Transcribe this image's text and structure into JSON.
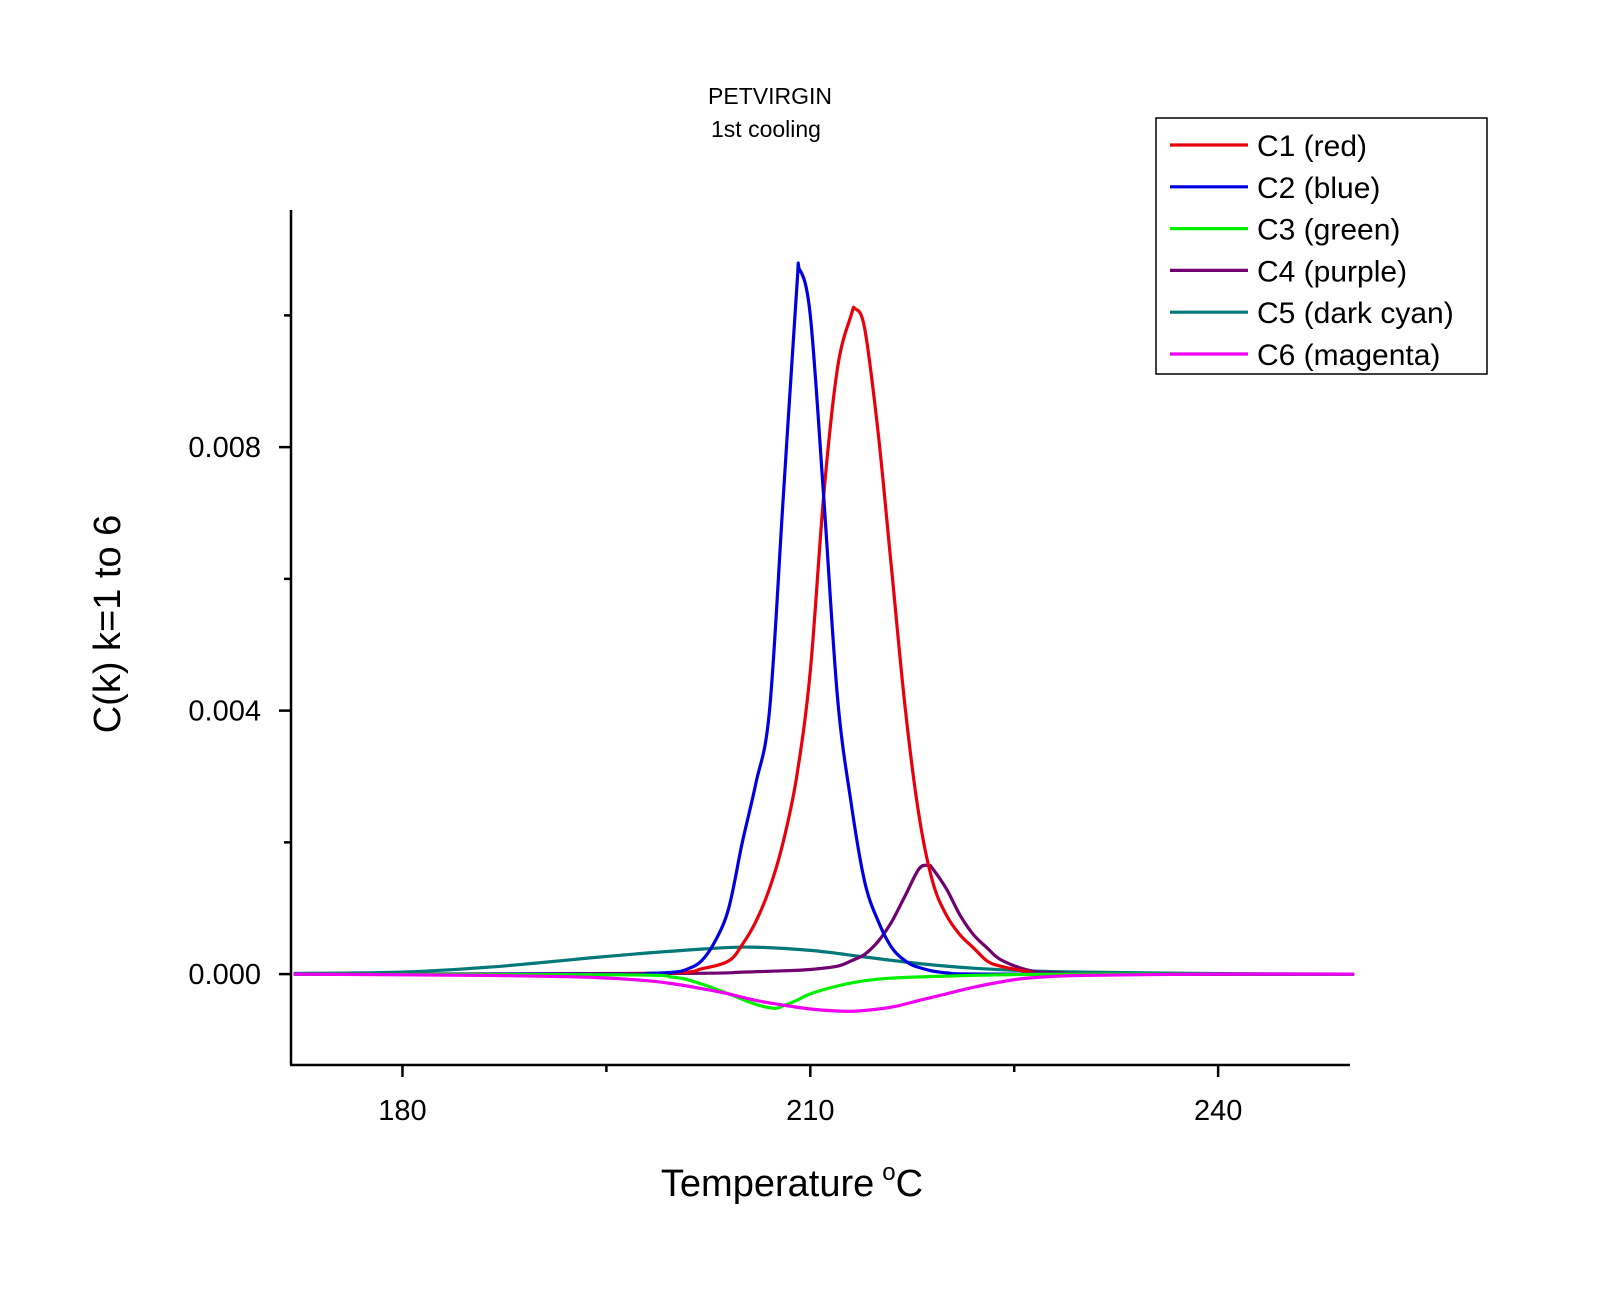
{
  "chart_data": {
    "type": "line",
    "title": [
      "PETVIRGIN",
      "1st  cooling"
    ],
    "xlabel": "Temperature",
    "xlabel_unit": "oC",
    "ylabel": "C(k) k=1 to 6",
    "xlim": [
      171.8,
      249.7
    ],
    "ylim": [
      -0.00138,
      0.0116
    ],
    "xticks": [
      {
        "value": 180,
        "label": "180"
      },
      {
        "value": 210,
        "label": "210"
      },
      {
        "value": 240,
        "label": "240"
      }
    ],
    "xminor": [
      195,
      225
    ],
    "yticks": [
      {
        "value": 0,
        "label": "0.000"
      },
      {
        "value": 0.004,
        "label": "0.004"
      },
      {
        "value": 0.008,
        "label": "0.008"
      }
    ],
    "yminor": [
      0.002,
      0.006,
      0.01
    ],
    "grid": false,
    "legend_position": "top-right",
    "series": [
      {
        "name": "C1 (red)",
        "color": "#e8000b",
        "x": [
          172,
          190,
          200,
          202,
          204,
          205,
          206,
          207,
          208,
          209,
          210,
          211,
          212,
          213,
          213.3,
          214,
          215,
          216,
          217,
          218,
          219,
          220,
          221,
          222,
          223,
          224,
          226,
          228,
          250
        ],
        "y": [
          0,
          0,
          2e-05,
          8e-05,
          0.0002,
          0.00045,
          0.0008,
          0.0013,
          0.002,
          0.003,
          0.0046,
          0.0073,
          0.0092,
          0.01,
          0.0101,
          0.0098,
          0.0082,
          0.0061,
          0.004,
          0.0024,
          0.0014,
          0.0009,
          0.0006,
          0.0004,
          0.0002,
          0.00012,
          4e-05,
          0,
          0
        ]
      },
      {
        "name": "C2 (blue)",
        "color": "#0000e0",
        "x": [
          172,
          196,
          198,
          200,
          201,
          202,
          203,
          204,
          205,
          206,
          207,
          208,
          209,
          209.2,
          210,
          211,
          212,
          213,
          214,
          215,
          216,
          217,
          218,
          220,
          224,
          250
        ],
        "y": [
          0,
          0,
          1e-05,
          3e-05,
          8e-05,
          0.0002,
          0.0005,
          0.001,
          0.002,
          0.0029,
          0.004,
          0.0072,
          0.0104,
          0.0107,
          0.01,
          0.0072,
          0.0042,
          0.0026,
          0.0014,
          0.0008,
          0.0004,
          0.0002,
          0.0001,
          2e-05,
          0,
          0
        ]
      },
      {
        "name": "C3 (green)",
        "color": "#00f000",
        "x": [
          172,
          196,
          200,
          202,
          204,
          206,
          207.4,
          208,
          209,
          210,
          212,
          214,
          216,
          220,
          224,
          230,
          250
        ],
        "y": [
          0,
          -1e-05,
          -5e-05,
          -0.00015,
          -0.0003,
          -0.00046,
          -0.00052,
          -0.00048,
          -0.0004,
          -0.0003,
          -0.00018,
          -0.0001,
          -6e-05,
          -3e-05,
          -1e-05,
          0,
          0
        ]
      },
      {
        "name": "C4 (purple)",
        "color": "#700070",
        "x": [
          172,
          200,
          205,
          208,
          210,
          212,
          213,
          214,
          215,
          216,
          217,
          218,
          218.7,
          219,
          220,
          221,
          222,
          223,
          224,
          226,
          228,
          232,
          250
        ],
        "y": [
          0,
          1e-05,
          3e-05,
          5e-05,
          7e-05,
          0.00012,
          0.0002,
          0.0003,
          0.0005,
          0.0008,
          0.0012,
          0.0016,
          0.00165,
          0.0016,
          0.0013,
          0.0009,
          0.0006,
          0.0004,
          0.00022,
          6e-05,
          2e-05,
          0,
          0
        ]
      },
      {
        "name": "C5 (dark cyan)",
        "color": "#007878",
        "x": [
          172,
          180,
          186,
          190,
          194,
          198,
          202,
          205.5,
          210,
          214,
          218,
          222,
          226,
          230,
          238,
          250
        ],
        "y": [
          1e-05,
          3e-05,
          0.0001,
          0.00017,
          0.00025,
          0.00032,
          0.00038,
          0.00041,
          0.00036,
          0.00026,
          0.00016,
          9e-05,
          5e-05,
          3e-05,
          1e-05,
          0
        ]
      },
      {
        "name": "C6 (magenta)",
        "color": "#f000f0",
        "x": [
          172,
          186,
          194,
          198,
          200,
          202,
          204,
          206,
          208,
          210,
          212,
          213.5,
          216,
          218,
          220,
          222,
          224,
          226,
          230,
          240,
          250
        ],
        "y": [
          0,
          -2e-05,
          -5e-05,
          -0.0001,
          -0.00015,
          -0.00022,
          -0.0003,
          -0.0004,
          -0.00047,
          -0.00053,
          -0.00056,
          -0.00056,
          -0.0005,
          -0.0004,
          -0.0003,
          -0.0002,
          -0.00012,
          -6e-05,
          -2e-05,
          0,
          0
        ]
      }
    ]
  }
}
